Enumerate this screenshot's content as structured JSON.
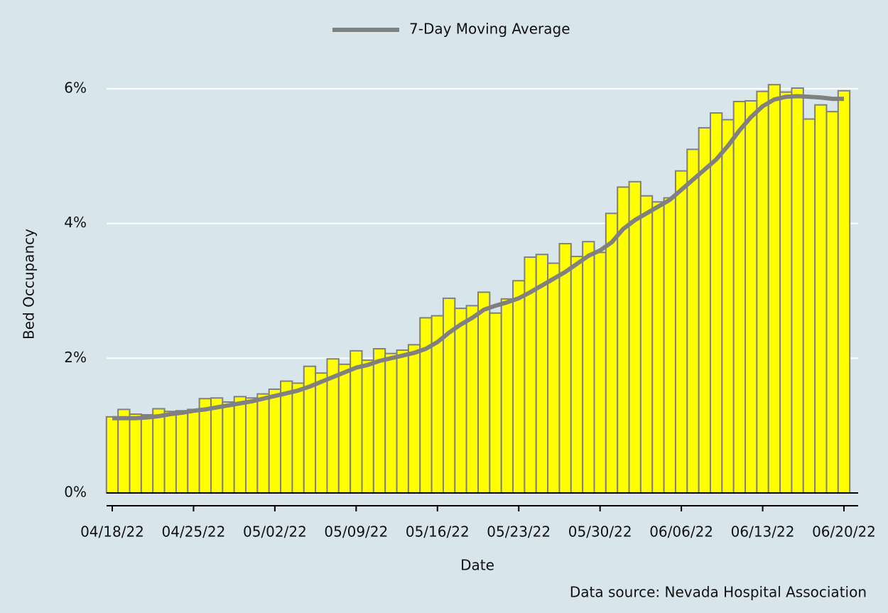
{
  "chart_data": {
    "type": "bar_line",
    "x_label": "Date",
    "y_label": "Bed Occupancy",
    "source": "Data source: Nevada Hospital Association",
    "categories": [
      "04/18/22",
      null,
      null,
      null,
      null,
      null,
      null,
      "04/25/22",
      null,
      null,
      null,
      null,
      null,
      null,
      "05/02/22",
      null,
      null,
      null,
      null,
      null,
      null,
      "05/09/22",
      null,
      null,
      null,
      null,
      null,
      null,
      "05/16/22",
      null,
      null,
      null,
      null,
      null,
      null,
      "05/23/22",
      null,
      null,
      null,
      null,
      null,
      null,
      "05/30/22",
      null,
      null,
      null,
      null,
      null,
      null,
      "06/06/22",
      null,
      null,
      null,
      null,
      null,
      null,
      "06/13/22",
      null,
      null,
      null,
      null,
      null,
      null,
      "06/20/22"
    ],
    "values": [
      1.13,
      1.24,
      1.17,
      1.16,
      1.25,
      1.21,
      1.22,
      1.24,
      1.4,
      1.41,
      1.35,
      1.43,
      1.41,
      1.47,
      1.54,
      1.66,
      1.63,
      1.88,
      1.78,
      1.99,
      1.91,
      2.11,
      1.97,
      2.14,
      2.07,
      2.12,
      2.2,
      2.6,
      2.63,
      2.89,
      2.74,
      2.78,
      2.98,
      2.67,
      2.88,
      3.15,
      3.5,
      3.54,
      3.41,
      3.7,
      3.51,
      3.73,
      3.57,
      4.15,
      4.54,
      4.62,
      4.41,
      4.32,
      4.38,
      4.78,
      5.1,
      5.42,
      5.64,
      5.54,
      5.81,
      5.82,
      5.96,
      6.06,
      5.95,
      6.01,
      5.55,
      5.76,
      5.66,
      5.97
    ],
    "bar_color": "#ffff00",
    "bar_edge_color": "#808080",
    "series": [
      {
        "name": "7-Day Moving Average",
        "color": "#808080",
        "values": [
          1.11,
          1.11,
          1.11,
          1.12,
          1.14,
          1.17,
          1.19,
          1.22,
          1.24,
          1.27,
          1.3,
          1.33,
          1.36,
          1.4,
          1.44,
          1.48,
          1.52,
          1.58,
          1.65,
          1.72,
          1.79,
          1.86,
          1.9,
          1.96,
          2.0,
          2.04,
          2.08,
          2.14,
          2.24,
          2.38,
          2.5,
          2.6,
          2.72,
          2.78,
          2.83,
          2.89,
          2.98,
          3.08,
          3.18,
          3.28,
          3.4,
          3.52,
          3.6,
          3.72,
          3.92,
          4.05,
          4.15,
          4.25,
          4.35,
          4.5,
          4.65,
          4.8,
          4.95,
          5.15,
          5.38,
          5.58,
          5.74,
          5.84,
          5.88,
          5.89,
          5.88,
          5.87,
          5.85,
          5.85
        ]
      }
    ],
    "ylim": [
      -0.2,
      6.6
    ],
    "yticks": [
      {
        "value": 0,
        "label": "0%"
      },
      {
        "value": 2,
        "label": "2%"
      },
      {
        "value": 4,
        "label": "4%"
      },
      {
        "value": 6,
        "label": "6%"
      }
    ],
    "grid": true
  }
}
